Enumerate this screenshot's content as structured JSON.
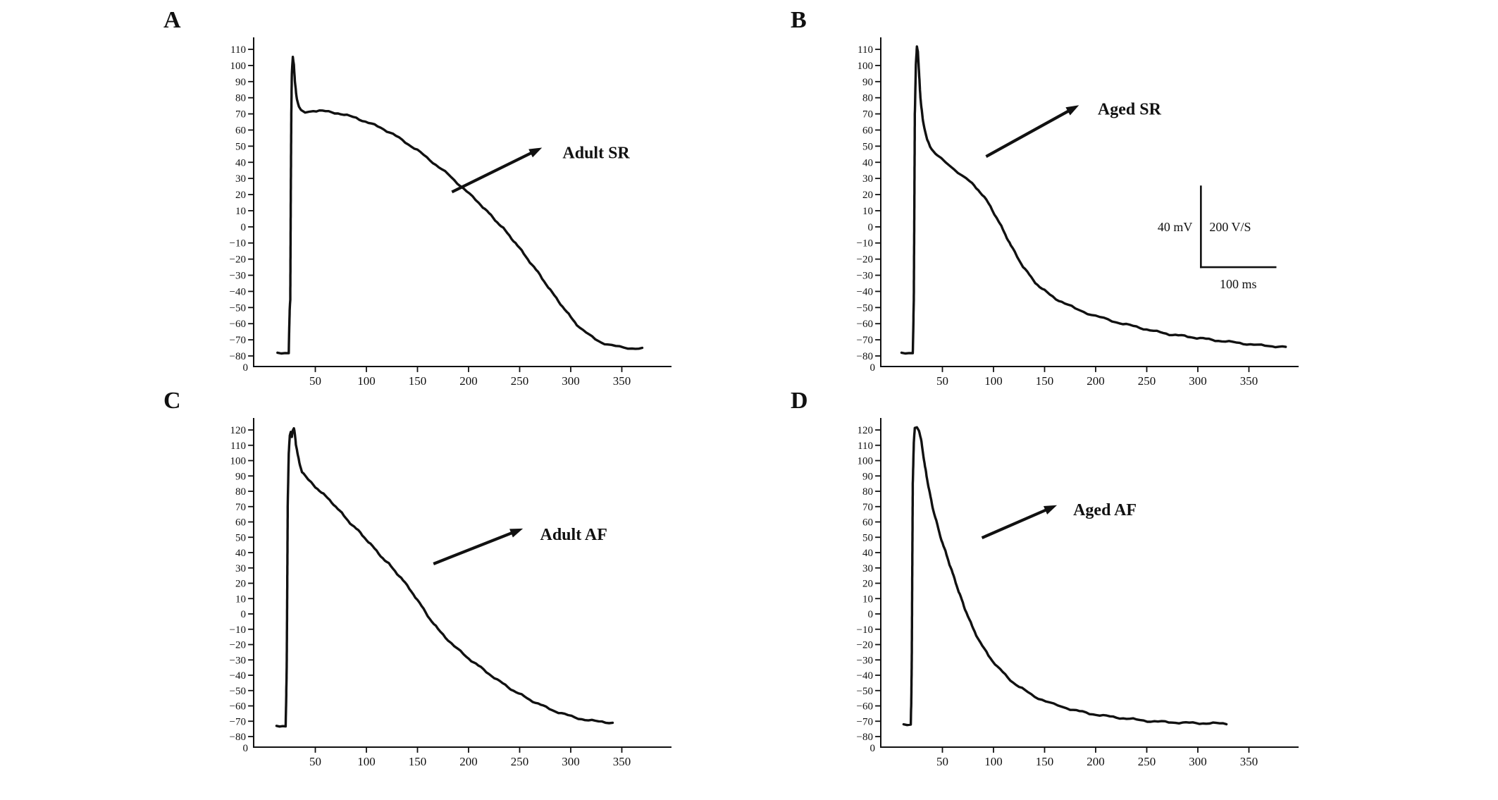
{
  "figure": {
    "background": "#ffffff",
    "ink": "#111111"
  },
  "chart_data": [
    {
      "panel": "A",
      "letter": "A",
      "type": "line",
      "name": "Adult SR",
      "title": "",
      "xlabel": "",
      "ylabel": "",
      "xlim": [
        0,
        395
      ],
      "ylim": [
        -80,
        110
      ],
      "ytick_step": 10,
      "xticks": [
        50,
        100,
        150,
        200,
        250,
        300,
        350
      ],
      "x_origin_label": "0",
      "annotation": {
        "text": "Adult SR",
        "arrow_from": [
          185,
          22
        ],
        "arrow_to": [
          262,
          46
        ],
        "text_at": [
          292,
          46
        ]
      },
      "points": [
        [
          13,
          -78
        ],
        [
          24,
          -78
        ],
        [
          24.5,
          -62
        ],
        [
          25,
          -50
        ],
        [
          25.5,
          -45
        ],
        [
          26,
          20
        ],
        [
          26.5,
          70
        ],
        [
          27,
          95
        ],
        [
          28,
          105
        ],
        [
          29,
          101
        ],
        [
          30,
          90
        ],
        [
          32,
          79
        ],
        [
          34,
          74
        ],
        [
          36,
          72
        ],
        [
          40,
          71
        ],
        [
          44,
          71.5
        ],
        [
          48,
          72
        ],
        [
          54,
          72
        ],
        [
          60,
          71.5
        ],
        [
          66,
          71
        ],
        [
          72,
          70.5
        ],
        [
          78,
          69.5
        ],
        [
          84,
          68.5
        ],
        [
          90,
          67.5
        ],
        [
          96,
          66
        ],
        [
          102,
          64.5
        ],
        [
          108,
          63
        ],
        [
          114,
          61.5
        ],
        [
          120,
          59.5
        ],
        [
          126,
          57.5
        ],
        [
          132,
          55
        ],
        [
          138,
          52.5
        ],
        [
          144,
          50
        ],
        [
          150,
          47.5
        ],
        [
          156,
          44.5
        ],
        [
          162,
          41.5
        ],
        [
          168,
          38.5
        ],
        [
          174,
          35.5
        ],
        [
          180,
          32.5
        ],
        [
          186,
          29
        ],
        [
          192,
          25.5
        ],
        [
          198,
          22
        ],
        [
          204,
          18.5
        ],
        [
          210,
          15
        ],
        [
          216,
          11
        ],
        [
          222,
          7
        ],
        [
          228,
          3
        ],
        [
          234,
          -1
        ],
        [
          240,
          -5.5
        ],
        [
          246,
          -10
        ],
        [
          252,
          -15
        ],
        [
          258,
          -20
        ],
        [
          264,
          -25
        ],
        [
          270,
          -30
        ],
        [
          276,
          -35.5
        ],
        [
          282,
          -41
        ],
        [
          288,
          -46
        ],
        [
          294,
          -51
        ],
        [
          300,
          -56
        ],
        [
          306,
          -60.5
        ],
        [
          312,
          -64
        ],
        [
          318,
          -67
        ],
        [
          324,
          -69.5
        ],
        [
          330,
          -71.5
        ],
        [
          336,
          -73
        ],
        [
          344,
          -74
        ],
        [
          352,
          -74.8
        ],
        [
          360,
          -75.2
        ],
        [
          370,
          -75.5
        ]
      ]
    },
    {
      "panel": "B",
      "letter": "B",
      "type": "line",
      "name": "Aged SR",
      "title": "",
      "xlabel": "",
      "ylabel": "",
      "xlim": [
        0,
        395
      ],
      "ylim": [
        -80,
        110
      ],
      "ytick_step": 10,
      "xticks": [
        50,
        100,
        150,
        200,
        250,
        300,
        350
      ],
      "x_origin_label": "0",
      "annotation": {
        "text": "Aged SR",
        "arrow_from": [
          94,
          44
        ],
        "arrow_to": [
          174,
          72
        ],
        "text_at": [
          202,
          73
        ]
      },
      "scalebar": {
        "x": 303,
        "y_top": 25,
        "y_bottom": -25,
        "x_right": 376,
        "labels": {
          "left": "40 mV",
          "right": "200 V/S",
          "bottom": "100 ms"
        }
      },
      "points": [
        [
          10,
          -78
        ],
        [
          21,
          -78
        ],
        [
          21.5,
          -62
        ],
        [
          22,
          -45
        ],
        [
          22.5,
          10
        ],
        [
          23,
          70
        ],
        [
          24,
          100
        ],
        [
          25,
          112
        ],
        [
          26,
          108
        ],
        [
          27,
          97
        ],
        [
          28,
          85
        ],
        [
          29,
          76
        ],
        [
          31,
          66
        ],
        [
          33,
          59
        ],
        [
          35,
          54
        ],
        [
          38,
          50
        ],
        [
          41,
          47
        ],
        [
          45,
          44
        ],
        [
          49,
          42
        ],
        [
          53,
          40
        ],
        [
          57,
          38
        ],
        [
          61,
          36
        ],
        [
          65,
          34
        ],
        [
          69,
          32
        ],
        [
          73,
          30
        ],
        [
          77,
          28
        ],
        [
          81,
          25.5
        ],
        [
          85,
          23
        ],
        [
          89,
          20
        ],
        [
          93,
          16.5
        ],
        [
          97,
          12.5
        ],
        [
          101,
          8
        ],
        [
          105,
          3.5
        ],
        [
          109,
          -1.5
        ],
        [
          113,
          -6.5
        ],
        [
          117,
          -11.5
        ],
        [
          121,
          -16
        ],
        [
          125,
          -20.5
        ],
        [
          129,
          -24.5
        ],
        [
          133,
          -28
        ],
        [
          137,
          -31.5
        ],
        [
          141,
          -34.5
        ],
        [
          145,
          -37
        ],
        [
          150,
          -39.5
        ],
        [
          155,
          -42
        ],
        [
          161,
          -44.5
        ],
        [
          167,
          -46.5
        ],
        [
          173,
          -48.5
        ],
        [
          180,
          -50.5
        ],
        [
          188,
          -52.5
        ],
        [
          196,
          -54.5
        ],
        [
          204,
          -56
        ],
        [
          212,
          -57.5
        ],
        [
          220,
          -59
        ],
        [
          230,
          -60.5
        ],
        [
          240,
          -62
        ],
        [
          250,
          -63.5
        ],
        [
          260,
          -65
        ],
        [
          272,
          -66.5
        ],
        [
          284,
          -67.5
        ],
        [
          296,
          -68.5
        ],
        [
          308,
          -69.5
        ],
        [
          320,
          -70.5
        ],
        [
          334,
          -71.5
        ],
        [
          348,
          -72.5
        ],
        [
          362,
          -73.5
        ],
        [
          376,
          -74
        ],
        [
          386,
          -74.5
        ]
      ]
    },
    {
      "panel": "C",
      "letter": "C",
      "type": "line",
      "name": "Adult AF",
      "title": "",
      "xlabel": "",
      "ylabel": "",
      "xlim": [
        0,
        395
      ],
      "ylim": [
        -80,
        120
      ],
      "ytick_step": 10,
      "xticks": [
        50,
        100,
        150,
        200,
        250,
        300,
        350
      ],
      "x_origin_label": "0",
      "annotation": {
        "text": "Adult AF",
        "arrow_from": [
          167,
          33
        ],
        "arrow_to": [
          243,
          53
        ],
        "text_at": [
          270,
          52
        ]
      },
      "points": [
        [
          12,
          -73
        ],
        [
          21,
          -73
        ],
        [
          21.5,
          -55
        ],
        [
          22,
          -35
        ],
        [
          22.5,
          15
        ],
        [
          23,
          70
        ],
        [
          24,
          105
        ],
        [
          25,
          116
        ],
        [
          26,
          119
        ],
        [
          27,
          116
        ],
        [
          28,
          120
        ],
        [
          29,
          121
        ],
        [
          30,
          117
        ],
        [
          31,
          111
        ],
        [
          33,
          103
        ],
        [
          35,
          97
        ],
        [
          37,
          93
        ],
        [
          40,
          90
        ],
        [
          43,
          87.5
        ],
        [
          46,
          85.5
        ],
        [
          50,
          83
        ],
        [
          54,
          80.5
        ],
        [
          58,
          78
        ],
        [
          62,
          75.5
        ],
        [
          66,
          73
        ],
        [
          70,
          70
        ],
        [
          74,
          67
        ],
        [
          78,
          64
        ],
        [
          82,
          61
        ],
        [
          86,
          58
        ],
        [
          90,
          55.5
        ],
        [
          94,
          53
        ],
        [
          98,
          50
        ],
        [
          102,
          47
        ],
        [
          106,
          44
        ],
        [
          110,
          41
        ],
        [
          114,
          38
        ],
        [
          118,
          35
        ],
        [
          122,
          32.5
        ],
        [
          126,
          29.5
        ],
        [
          130,
          26.5
        ],
        [
          134,
          23.5
        ],
        [
          138,
          20
        ],
        [
          142,
          16.5
        ],
        [
          146,
          13
        ],
        [
          150,
          9
        ],
        [
          154,
          5
        ],
        [
          158,
          1
        ],
        [
          162,
          -3
        ],
        [
          166,
          -6.5
        ],
        [
          170,
          -10
        ],
        [
          175,
          -13.5
        ],
        [
          180,
          -17
        ],
        [
          186,
          -21
        ],
        [
          192,
          -24.5
        ],
        [
          198,
          -28
        ],
        [
          205,
          -31.5
        ],
        [
          212,
          -35
        ],
        [
          220,
          -39
        ],
        [
          228,
          -43
        ],
        [
          236,
          -46.5
        ],
        [
          244,
          -50
        ],
        [
          252,
          -53
        ],
        [
          260,
          -56
        ],
        [
          268,
          -58.5
        ],
        [
          276,
          -61
        ],
        [
          285,
          -63.5
        ],
        [
          294,
          -65.5
        ],
        [
          304,
          -67.5
        ],
        [
          314,
          -69
        ],
        [
          324,
          -70
        ],
        [
          334,
          -70.5
        ],
        [
          341,
          -71
        ]
      ]
    },
    {
      "panel": "D",
      "letter": "D",
      "type": "line",
      "name": "Aged AF",
      "title": "",
      "xlabel": "",
      "ylabel": "",
      "xlim": [
        0,
        395
      ],
      "ylim": [
        -80,
        120
      ],
      "ytick_step": 10,
      "xticks": [
        50,
        100,
        150,
        200,
        250,
        300,
        350
      ],
      "x_origin_label": "0",
      "annotation": {
        "text": "Aged AF",
        "arrow_from": [
          90,
          50
        ],
        "arrow_to": [
          152,
          68
        ],
        "text_at": [
          178,
          68
        ]
      },
      "points": [
        [
          12,
          -72
        ],
        [
          19,
          -72
        ],
        [
          19.5,
          -58
        ],
        [
          20,
          -30
        ],
        [
          20.5,
          30
        ],
        [
          21,
          85
        ],
        [
          22,
          112
        ],
        [
          23,
          121
        ],
        [
          25,
          122
        ],
        [
          27,
          120
        ],
        [
          29,
          114
        ],
        [
          31,
          105
        ],
        [
          33,
          96
        ],
        [
          35,
          88
        ],
        [
          37,
          81
        ],
        [
          39,
          74
        ],
        [
          41,
          68
        ],
        [
          43,
          63
        ],
        [
          45,
          58
        ],
        [
          47,
          53
        ],
        [
          49,
          48.5
        ],
        [
          51,
          44.5
        ],
        [
          54,
          38.5
        ],
        [
          57,
          32.5
        ],
        [
          60,
          26.5
        ],
        [
          63,
          20.5
        ],
        [
          66,
          14.5
        ],
        [
          69,
          9
        ],
        [
          72,
          3.5
        ],
        [
          75,
          -1.5
        ],
        [
          79,
          -8
        ],
        [
          83,
          -13.5
        ],
        [
          87,
          -18.5
        ],
        [
          91,
          -23
        ],
        [
          95,
          -27
        ],
        [
          99,
          -30.5
        ],
        [
          104,
          -34.5
        ],
        [
          109,
          -38
        ],
        [
          114,
          -41.5
        ],
        [
          119,
          -44.5
        ],
        [
          125,
          -47.5
        ],
        [
          131,
          -50
        ],
        [
          137,
          -52.5
        ],
        [
          144,
          -55
        ],
        [
          151,
          -57
        ],
        [
          159,
          -59
        ],
        [
          167,
          -60.5
        ],
        [
          175,
          -62
        ],
        [
          184,
          -63.5
        ],
        [
          194,
          -65
        ],
        [
          204,
          -66
        ],
        [
          214,
          -67
        ],
        [
          227,
          -68
        ],
        [
          240,
          -69
        ],
        [
          254,
          -70
        ],
        [
          268,
          -70.5
        ],
        [
          285,
          -71
        ],
        [
          305,
          -71.3
        ],
        [
          328,
          -71.5
        ]
      ]
    }
  ]
}
